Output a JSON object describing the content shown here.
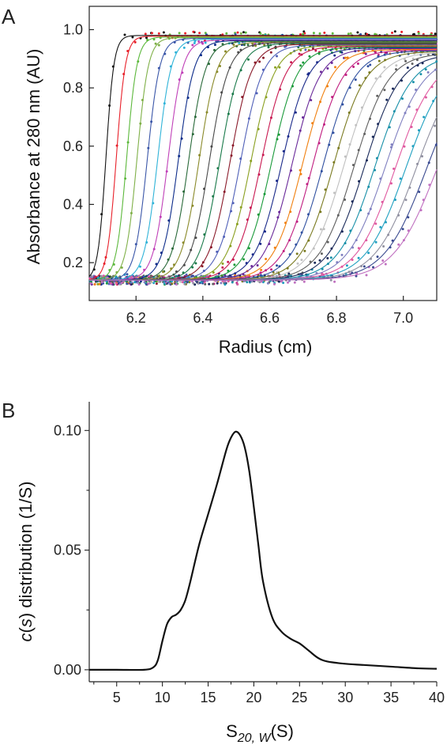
{
  "chart_data": [
    {
      "panel": "A",
      "type": "scatter",
      "xlabel": "Radius (cm)",
      "ylabel": "Absorbance at 280 nm (AU)",
      "xlim": [
        6.06,
        7.1
      ],
      "ylim": [
        0.07,
        1.08
      ],
      "xticks": [
        "6.2",
        "6.4",
        "6.6",
        "6.8",
        "7.0"
      ],
      "yticks": [
        "0.2",
        "0.4",
        "0.6",
        "0.8",
        "1.0"
      ],
      "baseline": 0.14,
      "profiles": {
        "count": 33,
        "first_midpoint": 6.11,
        "last_midpoint": 7.1,
        "plateau_start": 0.98,
        "plateau_end": 0.9,
        "width_start": 0.012,
        "width_end": 0.065,
        "colors": [
          "#111111",
          "#e8202a",
          "#5cb83b",
          "#7fb048",
          "#3a56a8",
          "#2fb3d8",
          "#c040b8",
          "#0d2c8a",
          "#2a6a3a",
          "#8a8a2a",
          "#4a4a4a",
          "#1a7a4a",
          "#8a1a2a",
          "#5060b8",
          "#8aa020",
          "#c81850",
          "#1a9a3a",
          "#1a2a8a",
          "#6a2a9a",
          "#f08010",
          "#c01e80",
          "#3050a0",
          "#7a7a20",
          "#c0c0c0",
          "#606060",
          "#1a2a5a",
          "#1890a8",
          "#8080c0",
          "#e05aa0",
          "#20a0c0",
          "#9090a0",
          "#3a4a90",
          "#c070c0"
        ]
      }
    },
    {
      "panel": "B",
      "type": "line",
      "xlabel_main": "S",
      "xlabel_sub": "20, W",
      "xlabel_unit": "(S)",
      "ylabel_italic": "c",
      "ylabel_s": "s",
      "ylabel_open": "(",
      "ylabel_close": ")",
      "ylabel_rest": " distribution (1/S)",
      "xlim": [
        2,
        40
      ],
      "ylim": [
        -0.005,
        0.112
      ],
      "xticks": [
        "5",
        "10",
        "15",
        "20",
        "25",
        "30",
        "35",
        "40"
      ],
      "yticks": [
        "0.00",
        "0.05",
        "0.10"
      ],
      "x": [
        2,
        5,
        8,
        9,
        9.5,
        10,
        10.5,
        11,
        11.5,
        12,
        12.5,
        13,
        14,
        15,
        16,
        17,
        17.5,
        18,
        18.5,
        19,
        19.5,
        20,
        20.5,
        21,
        22,
        23,
        24,
        25,
        26,
        27,
        28,
        30,
        32,
        35,
        38,
        40
      ],
      "y": [
        0.0,
        0.0,
        0.0,
        0.001,
        0.004,
        0.012,
        0.019,
        0.022,
        0.023,
        0.025,
        0.029,
        0.036,
        0.052,
        0.065,
        0.078,
        0.092,
        0.097,
        0.0995,
        0.098,
        0.093,
        0.083,
        0.068,
        0.052,
        0.037,
        0.022,
        0.016,
        0.013,
        0.011,
        0.008,
        0.005,
        0.0035,
        0.0025,
        0.002,
        0.0013,
        0.0006,
        0.0004
      ]
    }
  ],
  "panel_labels": [
    "A",
    "B"
  ]
}
